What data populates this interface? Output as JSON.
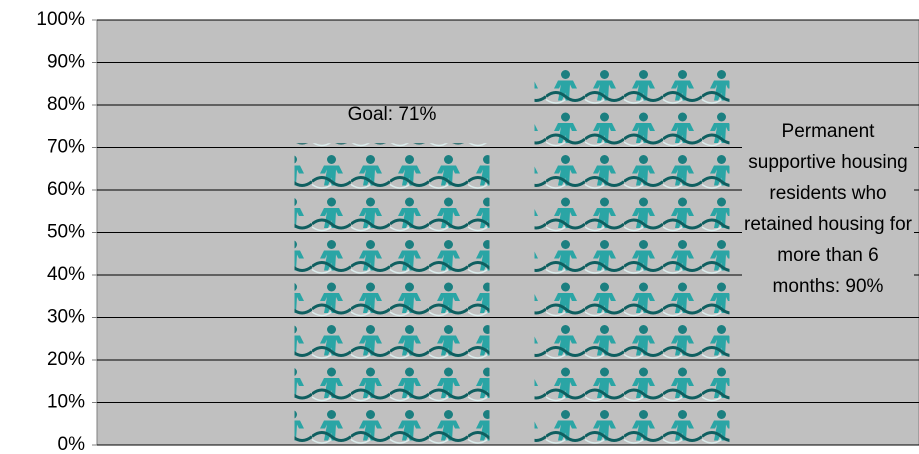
{
  "chart_data": {
    "type": "bar",
    "categories": [
      null,
      null
    ],
    "values": [
      71,
      90
    ],
    "color": "#2aa5a5",
    "plot_background": "#c0c0c0",
    "ylim": [
      0,
      100
    ],
    "yticks": [
      {
        "value": 0,
        "label": "0%"
      },
      {
        "value": 10,
        "label": "10%"
      },
      {
        "value": 20,
        "label": "20%"
      },
      {
        "value": 30,
        "label": "30%"
      },
      {
        "value": 40,
        "label": "40%"
      },
      {
        "value": 50,
        "label": "50%"
      },
      {
        "value": 60,
        "label": "60%"
      },
      {
        "value": 70,
        "label": "70%"
      },
      {
        "value": 80,
        "label": "80%"
      },
      {
        "value": 90,
        "label": "90%"
      },
      {
        "value": 100,
        "label": "100%"
      }
    ],
    "grid": true,
    "annotations": [
      "Goal: 71%",
      "Permanent supportive housing residents who retained housing for more than 6 months: 90%"
    ]
  }
}
